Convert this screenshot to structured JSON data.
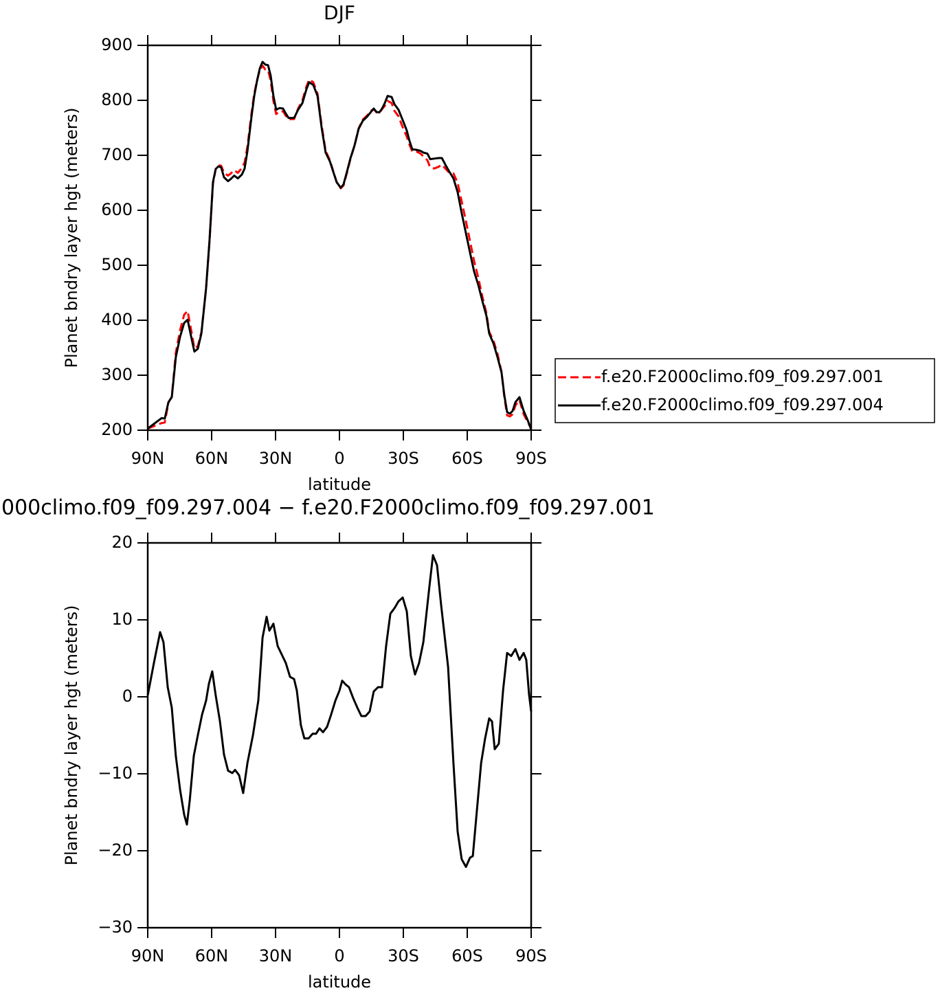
{
  "chart_data": [
    {
      "type": "line",
      "title": "DJF",
      "xlabel": "latitude",
      "ylabel": "Planet bndry layer hgt (meters)",
      "xlim": [
        90,
        -90
      ],
      "xticks": [
        {
          "value": 90,
          "label": "90N"
        },
        {
          "value": 60,
          "label": "60N"
        },
        {
          "value": 30,
          "label": "30N"
        },
        0,
        {
          "value": -30,
          "label": "30S"
        },
        {
          "value": -60,
          "label": "60S"
        },
        {
          "value": -90,
          "label": "90S"
        }
      ],
      "ylim": [
        200,
        900
      ],
      "yticks": [
        200,
        300,
        400,
        500,
        600,
        700,
        800,
        900
      ],
      "legend": "outside-right",
      "x": [
        90,
        83.5,
        82,
        80.3,
        78.7,
        76.8,
        74.8,
        72.9,
        71.3,
        69.7,
        68.1,
        66.5,
        64.8,
        62.6,
        61,
        59.4,
        58.1,
        56.8,
        55.5,
        54.2,
        52.3,
        51,
        49.4,
        47.7,
        45.8,
        44.5,
        43.2,
        41.3,
        40,
        38.7,
        37.4,
        36.1,
        34.8,
        33.5,
        32.3,
        31,
        29.7,
        28.1,
        26.5,
        25.2,
        23.9,
        22.6,
        21.3,
        19.4,
        17.4,
        15.5,
        14.2,
        12.3,
        10.3,
        8.4,
        6.5,
        4.5,
        2.9,
        1.3,
        -0.6,
        -1.9,
        -3.5,
        -5.2,
        -7.1,
        -9,
        -11,
        -12.9,
        -14.8,
        -16.1,
        -17.4,
        -18.7,
        -20,
        -21.3,
        -22.6,
        -24.5,
        -25.8,
        -27.7,
        -29.7,
        -31.6,
        -32.9,
        -34.2,
        -36.1,
        -38.1,
        -39.4,
        -41.3,
        -42.6,
        -44.5,
        -46.5,
        -48.1,
        -49.7,
        -51.6,
        -53.5,
        -55.5,
        -57.4,
        -59.4,
        -61.3,
        -63.2,
        -65.2,
        -67.1,
        -69,
        -70.3,
        -72.3,
        -74.2,
        -76.1,
        -77.4,
        -78.7,
        -80,
        -81.3,
        -82.6,
        -84.5,
        -86.5,
        -88.4,
        -90
      ],
      "series": [
        {
          "name": "f.e20.F2000climo.f09_f09.297.001",
          "color": "#ff0000",
          "linestyle": "dashed",
          "values": [
            203,
            213,
            214,
            250,
            261,
            341,
            382,
            410,
            417,
            384,
            349,
            353,
            378,
            458,
            543,
            648,
            675,
            682,
            681,
            668,
            663,
            667,
            673,
            668,
            677,
            687,
            716,
            776,
            812,
            836,
            855,
            863,
            856,
            855,
            836,
            799,
            775,
            780,
            780,
            772,
            765,
            766,
            766,
            785,
            800,
            825,
            838,
            833,
            812,
            755,
            708,
            691,
            671,
            651,
            640,
            645,
            668,
            694,
            718,
            749,
            765,
            772,
            781,
            784,
            778,
            777,
            784,
            790,
            799,
            795,
            781,
            771,
            751,
            734,
            719,
            707,
            707,
            703,
            698,
            691,
            678,
            676,
            679,
            683,
            676,
            668,
            667,
            650,
            616,
            580,
            544,
            508,
            477,
            443,
            413,
            379,
            363,
            339,
            306,
            261,
            227,
            225,
            229,
            245,
            255,
            229,
            215,
            203
          ]
        },
        {
          "name": "f.e20.F2000climo.f09_f09.297.004",
          "color": "#000000",
          "linestyle": "solid",
          "values": [
            203,
            222,
            221,
            251,
            260,
            333,
            370,
            395,
            401,
            372,
            343,
            348,
            376,
            458,
            545,
            651,
            675,
            680,
            678,
            660,
            653,
            657,
            663,
            658,
            665,
            676,
            708,
            770,
            808,
            835,
            858,
            870,
            865,
            864,
            845,
            808,
            783,
            786,
            785,
            776,
            768,
            768,
            768,
            783,
            795,
            820,
            833,
            828,
            808,
            751,
            705,
            689,
            670,
            651,
            641,
            647,
            670,
            695,
            718,
            748,
            763,
            770,
            779,
            785,
            779,
            778,
            785,
            795,
            808,
            806,
            793,
            783,
            764,
            745,
            726,
            711,
            710,
            708,
            705,
            703,
            693,
            694,
            695,
            695,
            683,
            670,
            658,
            633,
            595,
            558,
            523,
            489,
            464,
            435,
            408,
            376,
            358,
            333,
            305,
            264,
            233,
            230,
            235,
            251,
            260,
            235,
            218,
            201
          ]
        }
      ]
    },
    {
      "type": "line",
      "title": "000climo.f09_f09.297.004 − f.e20.F2000climo.f09_f09.297.001",
      "xlabel": "latitude",
      "ylabel": "Planet bndry layer hgt (meters)",
      "xlim": [
        90,
        -90
      ],
      "xticks": [
        {
          "value": 90,
          "label": "90N"
        },
        {
          "value": 60,
          "label": "60N"
        },
        {
          "value": 30,
          "label": "30N"
        },
        0,
        {
          "value": -30,
          "label": "30S"
        },
        {
          "value": -60,
          "label": "60S"
        },
        {
          "value": -90,
          "label": "90S"
        }
      ],
      "ylim": [
        -30,
        20
      ],
      "yticks": [
        {
          "value": -30,
          "label": "−30"
        },
        {
          "value": -20,
          "label": "−20"
        },
        {
          "value": -10,
          "label": "−10"
        },
        0,
        10,
        20
      ],
      "x": [
        90,
        87.1,
        84.2,
        82.6,
        80.6,
        78.7,
        76.8,
        74.8,
        72.9,
        71.6,
        70.3,
        68.4,
        66.5,
        64.5,
        62.6,
        61.3,
        59.7,
        58.1,
        56.1,
        54.2,
        52.3,
        50.3,
        49,
        47.1,
        45.2,
        43.2,
        40.6,
        38.1,
        36.1,
        34.2,
        32.9,
        31,
        29,
        27.1,
        25.2,
        23.2,
        21.3,
        20,
        18.1,
        16.5,
        14.5,
        12.6,
        11,
        9.4,
        7.7,
        5.8,
        3.9,
        1.9,
        0,
        -1.3,
        -2.9,
        -4.5,
        -6.5,
        -8.4,
        -10.3,
        -12.3,
        -14.2,
        -16.1,
        -18.1,
        -20,
        -21.9,
        -23.9,
        -25.8,
        -27.7,
        -29.7,
        -31.6,
        -33.5,
        -35.5,
        -37.4,
        -39.4,
        -42,
        -43.9,
        -45.8,
        -47.7,
        -51,
        -53.5,
        -55.5,
        -57.4,
        -59.4,
        -61.3,
        -62.6,
        -64.5,
        -66.5,
        -68.4,
        -70.3,
        -71.6,
        -72.9,
        -74.8,
        -76.8,
        -78.7,
        -80.6,
        -82.6,
        -84.5,
        -86.5,
        -87.7,
        -89,
        -90
      ],
      "series": [
        {
          "color": "#000000",
          "linestyle": "solid",
          "values": [
            0.2,
            4.4,
            8.4,
            7.1,
            1.25,
            -1.4,
            -7.7,
            -12.1,
            -15.3,
            -16.6,
            -13.5,
            -7.7,
            -5,
            -2.3,
            -0.5,
            1.7,
            3.3,
            0.2,
            -3.2,
            -7.5,
            -9.6,
            -9.9,
            -9.5,
            -10.2,
            -12.5,
            -8.6,
            -5,
            -0.5,
            7.7,
            10.4,
            8.6,
            9.5,
            6.6,
            5.5,
            4.4,
            2.6,
            2.3,
            0.8,
            -3.7,
            -5.4,
            -5.4,
            -4.8,
            -4.8,
            -4.1,
            -4.6,
            -3.9,
            -2.3,
            -0.5,
            0.8,
            2.1,
            1.6,
            1.25,
            -0.2,
            -1.4,
            -2.5,
            -2.5,
            -1.9,
            0.7,
            1.25,
            1.25,
            6.6,
            10.8,
            11.5,
            12.4,
            12.9,
            11.1,
            5.3,
            2.9,
            4.4,
            7.1,
            13.75,
            18.4,
            17.1,
            12,
            3.9,
            -8.6,
            -17.5,
            -21.1,
            -22.1,
            -20.9,
            -20.7,
            -14.8,
            -8.6,
            -5.4,
            -2.8,
            -3.2,
            -6.8,
            -6.1,
            0.8,
            5.7,
            5.3,
            6.2,
            4.8,
            5.7,
            4.8,
            0.35,
            -1.9
          ]
        }
      ]
    }
  ]
}
